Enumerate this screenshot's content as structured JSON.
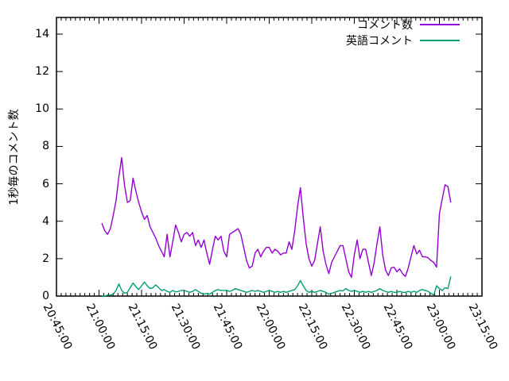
{
  "window": {
    "background": "#ffffff",
    "axis_color": "#000000"
  },
  "chart_data": {
    "type": "line",
    "title": "",
    "xlabel": "",
    "ylabel": "1秒毎のコメント数",
    "grid": false,
    "legend_position": "top-right-inside",
    "xlim": [
      "20:45:00",
      "23:15:00"
    ],
    "ylim": [
      0,
      14.9
    ],
    "y_ticks": [
      0,
      2,
      4,
      6,
      8,
      10,
      12,
      14
    ],
    "x_ticks": [
      "20:45:00",
      "21:00:00",
      "21:15:00",
      "21:30:00",
      "21:45:00",
      "22:00:00",
      "22:15:00",
      "22:30:00",
      "22:45:00",
      "23:00:00",
      "23:15:00"
    ],
    "x_major_tick_interval_seconds": 900,
    "x_minor_tick_interval_seconds": 100,
    "x": [
      "21:01:00",
      "21:02:00",
      "21:03:00",
      "21:04:00",
      "21:05:00",
      "21:06:00",
      "21:07:00",
      "21:08:00",
      "21:09:00",
      "21:10:00",
      "21:11:00",
      "21:12:00",
      "21:13:00",
      "21:14:00",
      "21:15:00",
      "21:16:00",
      "21:17:00",
      "21:18:00",
      "21:19:00",
      "21:20:00",
      "21:21:00",
      "21:22:00",
      "21:23:00",
      "21:24:00",
      "21:25:00",
      "21:26:00",
      "21:27:00",
      "21:28:00",
      "21:29:00",
      "21:30:00",
      "21:31:00",
      "21:32:00",
      "21:33:00",
      "21:34:00",
      "21:35:00",
      "21:36:00",
      "21:37:00",
      "21:38:00",
      "21:39:00",
      "21:40:00",
      "21:41:00",
      "21:42:00",
      "21:43:00",
      "21:44:00",
      "21:45:00",
      "21:46:00",
      "21:47:00",
      "21:48:00",
      "21:49:00",
      "21:50:00",
      "21:51:00",
      "21:52:00",
      "21:53:00",
      "21:54:00",
      "21:55:00",
      "21:56:00",
      "21:57:00",
      "21:58:00",
      "21:59:00",
      "22:00:00",
      "22:01:00",
      "22:02:00",
      "22:03:00",
      "22:04:00",
      "22:05:00",
      "22:06:00",
      "22:07:00",
      "22:08:00",
      "22:09:00",
      "22:10:00",
      "22:11:00",
      "22:12:00",
      "22:13:00",
      "22:14:00",
      "22:15:00",
      "22:16:00",
      "22:17:00",
      "22:18:00",
      "22:19:00",
      "22:20:00",
      "22:21:00",
      "22:22:00",
      "22:23:00",
      "22:24:00",
      "22:25:00",
      "22:26:00",
      "22:27:00",
      "22:28:00",
      "22:29:00",
      "22:30:00",
      "22:31:00",
      "22:32:00",
      "22:33:00",
      "22:34:00",
      "22:35:00",
      "22:36:00",
      "22:37:00",
      "22:38:00",
      "22:39:00",
      "22:40:00",
      "22:41:00",
      "22:42:00",
      "22:43:00",
      "22:44:00",
      "22:45:00",
      "22:46:00",
      "22:47:00",
      "22:48:00",
      "22:49:00",
      "22:50:00",
      "22:51:00",
      "22:52:00",
      "22:53:00",
      "22:54:00",
      "22:55:00",
      "22:56:00",
      "22:57:00",
      "22:58:00",
      "22:59:00",
      "23:00:00",
      "23:01:00",
      "23:02:00",
      "23:03:00",
      "23:04:00"
    ],
    "series": [
      {
        "name": "コメント数",
        "color": "#9400d3",
        "values": [
          3.9,
          3.5,
          3.3,
          3.6,
          4.3,
          5.1,
          6.4,
          7.4,
          5.9,
          5.0,
          5.1,
          6.3,
          5.6,
          5.0,
          4.5,
          4.1,
          4.3,
          3.7,
          3.4,
          3.1,
          2.7,
          2.4,
          2.1,
          3.3,
          2.1,
          2.9,
          3.8,
          3.4,
          2.9,
          3.3,
          3.4,
          3.2,
          3.4,
          2.7,
          3.0,
          2.6,
          3.0,
          2.3,
          1.7,
          2.5,
          3.2,
          3.0,
          3.2,
          2.4,
          2.1,
          3.3,
          3.4,
          3.5,
          3.6,
          3.3,
          2.6,
          1.9,
          1.5,
          1.6,
          2.3,
          2.5,
          2.1,
          2.4,
          2.6,
          2.6,
          2.3,
          2.5,
          2.4,
          2.2,
          2.3,
          2.3,
          2.9,
          2.5,
          3.5,
          4.8,
          5.8,
          4.2,
          2.8,
          2.0,
          1.6,
          1.9,
          2.8,
          3.7,
          2.4,
          1.7,
          1.2,
          1.8,
          2.1,
          2.4,
          2.7,
          2.7,
          2.0,
          1.3,
          1.0,
          2.2,
          3.0,
          2.0,
          2.5,
          2.5,
          1.8,
          1.1,
          1.8,
          2.8,
          3.7,
          2.2,
          1.4,
          1.1,
          1.5,
          1.55,
          1.3,
          1.45,
          1.2,
          1.05,
          1.5,
          2.1,
          2.7,
          2.25,
          2.45,
          2.1,
          2.1,
          2.05,
          1.9,
          1.8,
          1.55,
          4.4,
          5.2,
          5.95,
          5.85,
          5.0
        ]
      },
      {
        "name": "英語コメント",
        "color": "#009e73",
        "values": [
          0.0,
          0.0,
          0.05,
          0.05,
          0.1,
          0.3,
          0.65,
          0.3,
          0.15,
          0.2,
          0.45,
          0.7,
          0.5,
          0.35,
          0.55,
          0.75,
          0.55,
          0.4,
          0.45,
          0.6,
          0.45,
          0.3,
          0.35,
          0.25,
          0.2,
          0.3,
          0.22,
          0.25,
          0.3,
          0.3,
          0.25,
          0.2,
          0.25,
          0.35,
          0.25,
          0.15,
          0.1,
          0.15,
          0.1,
          0.2,
          0.3,
          0.35,
          0.3,
          0.3,
          0.3,
          0.25,
          0.3,
          0.4,
          0.35,
          0.3,
          0.25,
          0.2,
          0.25,
          0.3,
          0.25,
          0.3,
          0.25,
          0.2,
          0.25,
          0.3,
          0.25,
          0.2,
          0.25,
          0.2,
          0.25,
          0.2,
          0.25,
          0.3,
          0.35,
          0.55,
          0.83,
          0.55,
          0.3,
          0.2,
          0.25,
          0.2,
          0.25,
          0.3,
          0.25,
          0.2,
          0.1,
          0.15,
          0.2,
          0.25,
          0.3,
          0.27,
          0.4,
          0.3,
          0.25,
          0.3,
          0.25,
          0.2,
          0.25,
          0.2,
          0.25,
          0.2,
          0.25,
          0.3,
          0.4,
          0.3,
          0.25,
          0.2,
          0.25,
          0.2,
          0.2,
          0.25,
          0.2,
          0.2,
          0.25,
          0.2,
          0.25,
          0.2,
          0.3,
          0.35,
          0.3,
          0.25,
          0.15,
          0.05,
          0.55,
          0.4,
          0.3,
          0.45,
          0.4,
          1.05
        ]
      }
    ]
  }
}
